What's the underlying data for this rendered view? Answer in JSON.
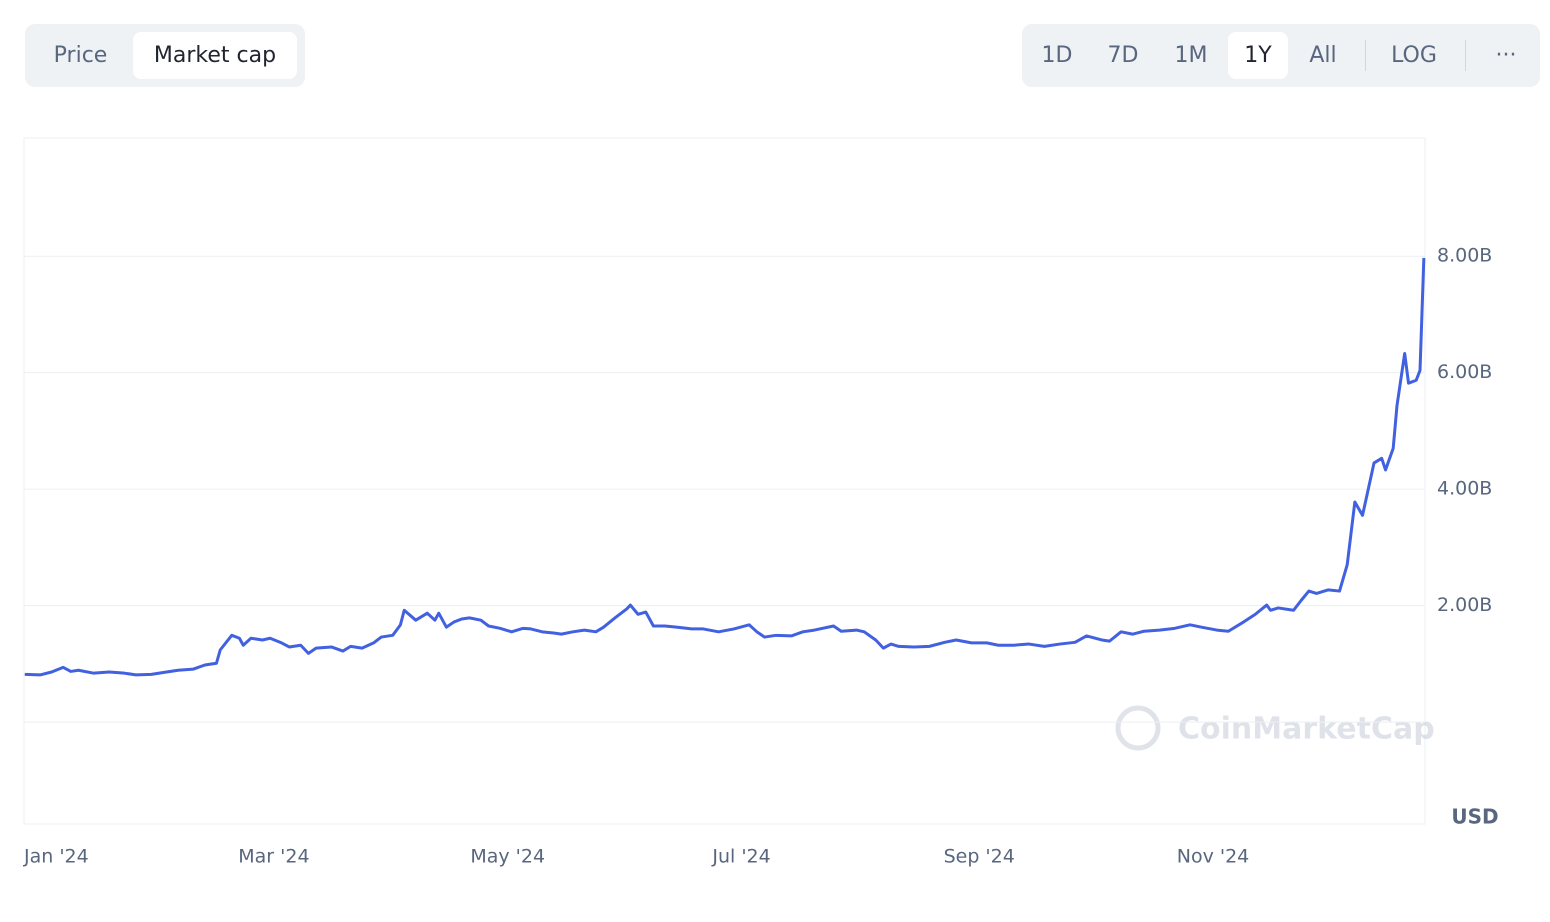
{
  "controls": {
    "tabs": [
      "Price",
      "Market cap"
    ],
    "ranges": [
      "1D",
      "7D",
      "1M",
      "1Y",
      "All"
    ],
    "scale": "LOG",
    "more": "···"
  },
  "chart_data": {
    "type": "line",
    "watermark": "CoinMarketCap",
    "currency": "USD",
    "x": [
      -5,
      -1,
      2,
      5,
      7,
      9,
      13,
      17,
      21,
      24,
      28,
      32,
      35,
      39,
      42,
      45,
      46,
      49,
      51,
      52,
      54,
      57,
      59,
      62,
      64,
      67,
      69,
      71,
      75,
      78,
      80,
      83,
      86,
      88,
      91,
      93,
      94,
      97,
      100,
      102,
      103,
      105,
      107,
      109,
      111,
      114,
      116,
      119,
      122,
      125,
      127,
      130,
      133,
      135,
      138,
      141,
      144,
      146,
      149,
      152,
      153,
      155,
      157,
      159,
      162,
      165,
      169,
      172,
      176,
      180,
      184,
      186,
      188,
      191,
      195,
      198,
      201,
      206,
      208,
      212,
      214,
      217,
      219,
      221,
      223,
      227,
      231,
      235,
      238,
      242,
      246,
      249,
      253,
      257,
      261,
      265,
      269,
      272,
      276,
      278,
      281,
      284,
      287,
      291,
      295,
      299,
      302,
      306,
      309,
      313,
      316,
      319,
      320,
      322,
      326,
      328,
      330,
      332,
      335,
      338,
      340,
      342,
      344,
      346,
      347,
      349,
      350,
      352,
      353,
      355,
      356,
      358,
      359,
      360
    ],
    "series": [
      {
        "name": "Market cap",
        "color": "#4161e0",
        "values": [
          0.82,
          0.81,
          0.86,
          0.94,
          0.87,
          0.89,
          0.84,
          0.86,
          0.84,
          0.81,
          0.82,
          0.86,
          0.89,
          0.91,
          0.98,
          1.01,
          1.24,
          1.49,
          1.44,
          1.32,
          1.44,
          1.41,
          1.44,
          1.36,
          1.29,
          1.32,
          1.18,
          1.27,
          1.29,
          1.22,
          1.3,
          1.27,
          1.36,
          1.46,
          1.49,
          1.67,
          1.92,
          1.75,
          1.87,
          1.75,
          1.87,
          1.63,
          1.72,
          1.77,
          1.79,
          1.75,
          1.65,
          1.61,
          1.55,
          1.61,
          1.6,
          1.55,
          1.53,
          1.51,
          1.55,
          1.58,
          1.55,
          1.63,
          1.79,
          1.94,
          2.01,
          1.85,
          1.89,
          1.65,
          1.65,
          1.63,
          1.6,
          1.6,
          1.55,
          1.6,
          1.67,
          1.55,
          1.46,
          1.49,
          1.48,
          1.55,
          1.58,
          1.65,
          1.56,
          1.58,
          1.55,
          1.41,
          1.27,
          1.34,
          1.3,
          1.29,
          1.3,
          1.37,
          1.41,
          1.36,
          1.36,
          1.32,
          1.32,
          1.34,
          1.3,
          1.34,
          1.37,
          1.48,
          1.41,
          1.39,
          1.55,
          1.51,
          1.56,
          1.58,
          1.61,
          1.67,
          1.63,
          1.58,
          1.56,
          1.72,
          1.85,
          2.01,
          1.92,
          1.96,
          1.92,
          2.09,
          2.25,
          2.21,
          2.27,
          2.25,
          2.7,
          3.78,
          3.55,
          4.15,
          4.45,
          4.53,
          4.33,
          4.7,
          5.44,
          6.33,
          5.82,
          5.87,
          6.04,
          7.97
        ]
      }
    ],
    "xlim": [
      -5.2,
      360.3
    ],
    "xticks": [
      {
        "value": 0,
        "label": "Jan '24"
      },
      {
        "value": 60,
        "label": "Mar '24"
      },
      {
        "value": 121,
        "label": "May '24"
      },
      {
        "value": 182,
        "label": "Jul '24"
      },
      {
        "value": 244,
        "label": "Sep '24"
      },
      {
        "value": 305,
        "label": "Nov '24"
      }
    ],
    "ylim": [
      -1.75,
      10.03
    ],
    "yticks": [
      {
        "value": 2,
        "label": "2.00B"
      },
      {
        "value": 4,
        "label": "4.00B"
      },
      {
        "value": 6,
        "label": "6.00B"
      },
      {
        "value": 8,
        "label": "8.00B"
      }
    ],
    "grid": true
  }
}
